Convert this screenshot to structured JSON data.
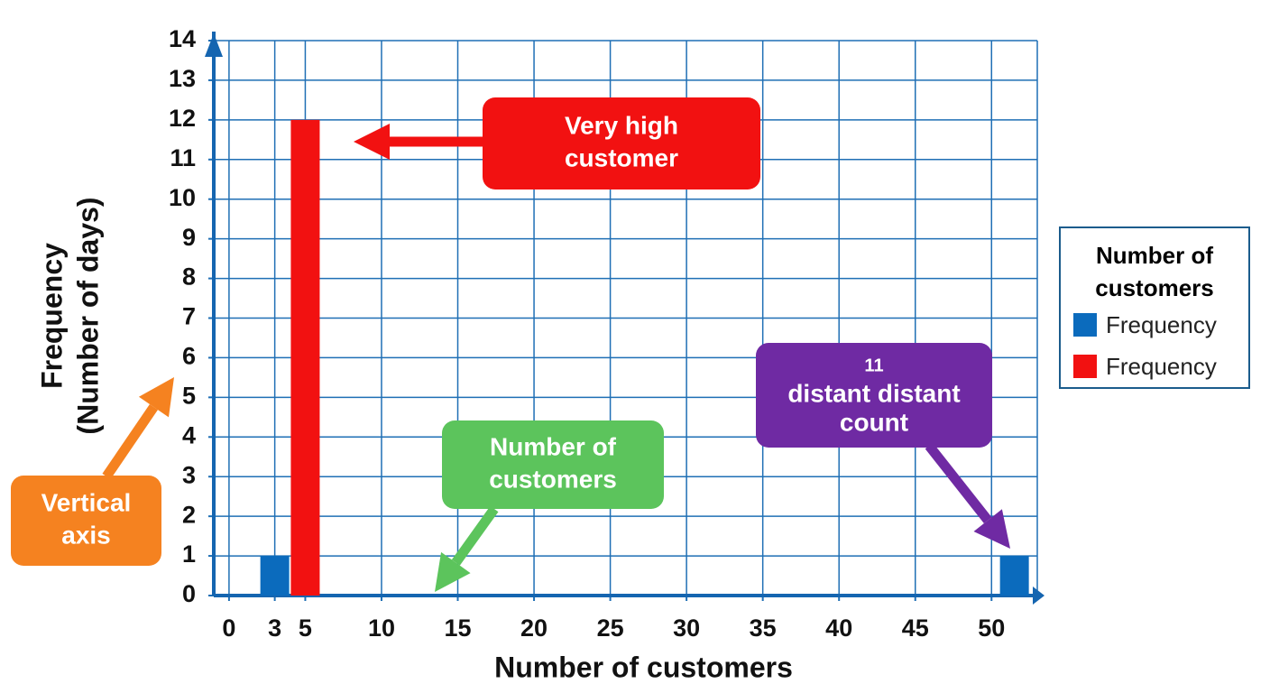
{
  "chart_data": {
    "type": "bar",
    "x_label": "Number of customers",
    "y_label": [
      "Frequency",
      "(Number of days)"
    ],
    "xlim": [
      -1,
      53
    ],
    "xticks": [
      0,
      3,
      5,
      10,
      15,
      20,
      25,
      30,
      35,
      40,
      45,
      50
    ],
    "ylim": [
      0,
      14
    ],
    "yticks": [
      0,
      1,
      2,
      3,
      4,
      5,
      6,
      7,
      8,
      9,
      10,
      11,
      12,
      13,
      14
    ],
    "grid": true,
    "legend_title": "Number of customers",
    "legend_position": "right",
    "series": [
      {
        "name": "Frequency",
        "color": "#0b6bbd",
        "x": [
          3,
          51.5
        ],
        "values": [
          1,
          1
        ]
      },
      {
        "name": "Frequency",
        "color": "#f21111",
        "x": [
          5
        ],
        "values": [
          12
        ]
      }
    ],
    "annotations": [
      {
        "lines": [
          "Very high",
          "customer"
        ],
        "color": "#f21111"
      },
      {
        "lines": [
          "Number of",
          "customers"
        ],
        "color": "#5cc45c"
      },
      {
        "lines": [
          "11",
          "distant distant",
          "count"
        ],
        "color": "#6f2aa3"
      },
      {
        "lines": [
          "Vertical",
          "axis"
        ],
        "color": "#f58220"
      }
    ]
  }
}
